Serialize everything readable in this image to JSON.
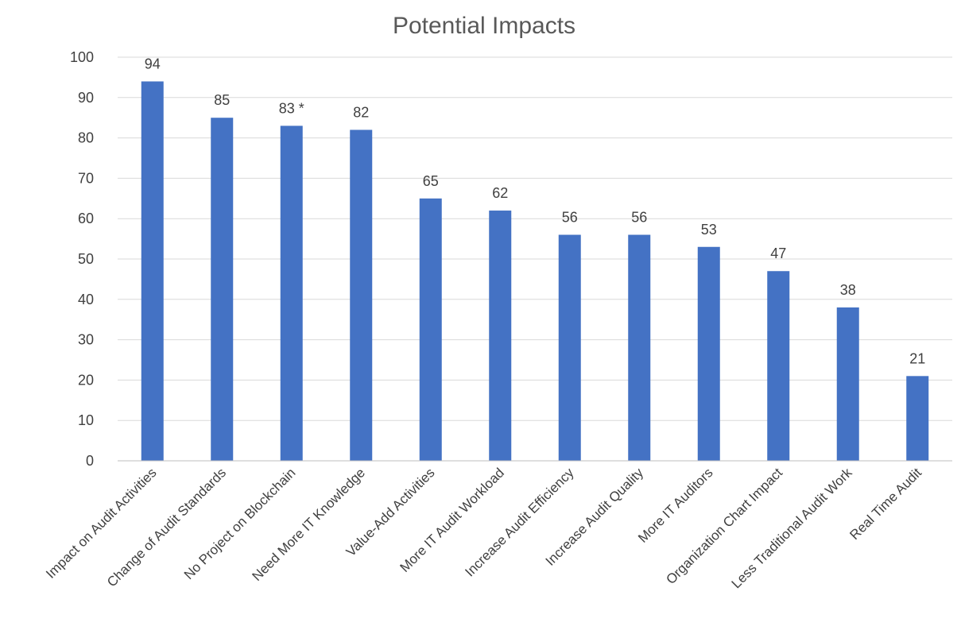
{
  "chart_data": {
    "type": "bar",
    "title": "Potential Impacts",
    "xlabel": "",
    "ylabel": "",
    "ylim": [
      0,
      100
    ],
    "yticks": [
      0,
      10,
      20,
      30,
      40,
      50,
      60,
      70,
      80,
      90,
      100
    ],
    "grid": true,
    "legend": "none",
    "bar_color": "#4472C4",
    "categories": [
      "Impact on Audit Activities",
      "Change of Audit Standards",
      "No Project on Blockchain",
      "Need More IT Knowledge",
      "Value-Add Activities",
      "More IT Audit Workload",
      "Increase Audit Efficiency",
      "Increase Audit Quality",
      "More IT Auditors",
      "Organization Chart Impact",
      "Less Traditional Audit Work",
      "Real Time Audit"
    ],
    "values": [
      94,
      85,
      83,
      82,
      65,
      62,
      56,
      56,
      53,
      47,
      38,
      21
    ],
    "data_labels": [
      "94",
      "85",
      "83 *",
      "82",
      "65",
      "62",
      "56",
      "56",
      "53",
      "47",
      "38",
      "21"
    ]
  }
}
